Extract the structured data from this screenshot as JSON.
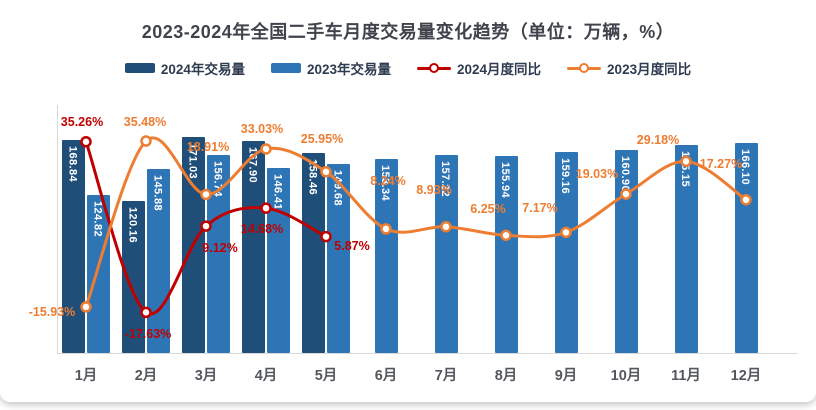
{
  "title": "2023-2024年全国二手车月度交易量变化趋势（单位：万辆，%）",
  "chart_data": {
    "type": "combo-bar-line",
    "title": "2023-2024年全国二手车月度交易量变化趋势（单位：万辆，%）",
    "legend_position": "top",
    "grid": false,
    "value_axis_labels_visible": false,
    "categories": [
      "1月",
      "2月",
      "3月",
      "4月",
      "5月",
      "6月",
      "7月",
      "8月",
      "9月",
      "10月",
      "11月",
      "12月"
    ],
    "series": [
      {
        "name": "2024年交易量",
        "type": "bar",
        "unit": "万辆",
        "color": "#1F4E79",
        "values": [
          168.84,
          120.16,
          171.03,
          167.9,
          158.46
        ],
        "labels": [
          "168.84",
          "120.16",
          "171.03",
          "167.90",
          "158.46"
        ]
      },
      {
        "name": "2023年交易量",
        "type": "bar",
        "unit": "万辆",
        "color": "#2E75B6",
        "values": [
          124.82,
          145.88,
          156.74,
          146.41,
          149.68,
          153.34,
          157.22,
          155.94,
          159.16,
          160.9,
          165.15,
          166.1
        ],
        "labels": [
          "124.82",
          "145.88",
          "156.74",
          "146.41",
          "149.68",
          "153.34",
          "157.22",
          "155.94",
          "159.16",
          "160.90",
          "165.15",
          "166.10"
        ]
      },
      {
        "name": "2024月度同比",
        "type": "line",
        "unit": "%",
        "color": "#C00000",
        "values": [
          35.26,
          -17.63,
          9.12,
          14.68,
          5.87
        ],
        "labels": [
          "35.26%",
          "-17.63%",
          "9.12%",
          "14.68%",
          "5.87%"
        ]
      },
      {
        "name": "2023月度同比",
        "type": "line",
        "unit": "%",
        "color": "#ED7D31",
        "values": [
          -15.93,
          35.48,
          18.91,
          33.03,
          25.95,
          8.24,
          8.93,
          6.25,
          7.17,
          19.03,
          29.18,
          17.27
        ],
        "labels": [
          "-15.93%",
          "35.48%",
          "18.91%",
          "33.03%",
          "25.95%",
          "8.24%",
          "8.93%",
          "6.25%",
          "7.17%",
          "19.03%",
          "29.18%",
          "17.27%"
        ]
      }
    ]
  },
  "colors": {
    "background": "#FFFFFF",
    "title_text": "#3F434C",
    "legend_text": "#2F3B50",
    "axis_label": "#54575D",
    "axis_line": "#D9D9D9",
    "bar_value_label": "#FFFFFF"
  }
}
